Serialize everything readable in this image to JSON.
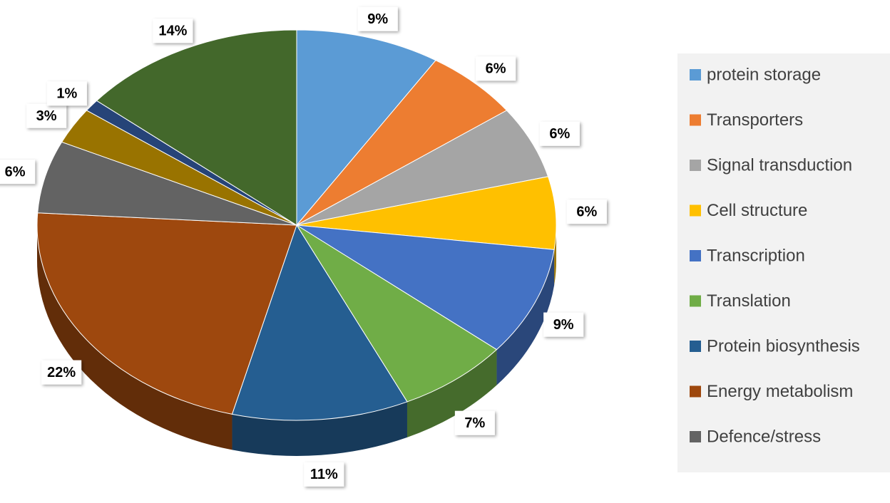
{
  "chart_data": {
    "type": "pie",
    "categories": [
      "protein storage",
      "Transporters",
      "Signal transduction",
      "Cell structure",
      "Transcription",
      "Translation",
      "Protein biosynthesis",
      "Energy metabolism",
      "Defence/stress",
      null,
      null,
      null
    ],
    "values": [
      9,
      6,
      6,
      6,
      9,
      7,
      11,
      22,
      6,
      3,
      1,
      14
    ],
    "value_labels": [
      "9%",
      "6%",
      "6%",
      "6%",
      "9%",
      "7%",
      "11%",
      "22%",
      "6%",
      "3%",
      "1%",
      "14%"
    ],
    "colors": [
      "#5b9bd5",
      "#ed7d31",
      "#a5a5a5",
      "#ffc000",
      "#4472c4",
      "#70ad47",
      "#255e91",
      "#9e480e",
      "#636363",
      "#997300",
      "#264478",
      "#43682b"
    ],
    "legend": "right"
  }
}
